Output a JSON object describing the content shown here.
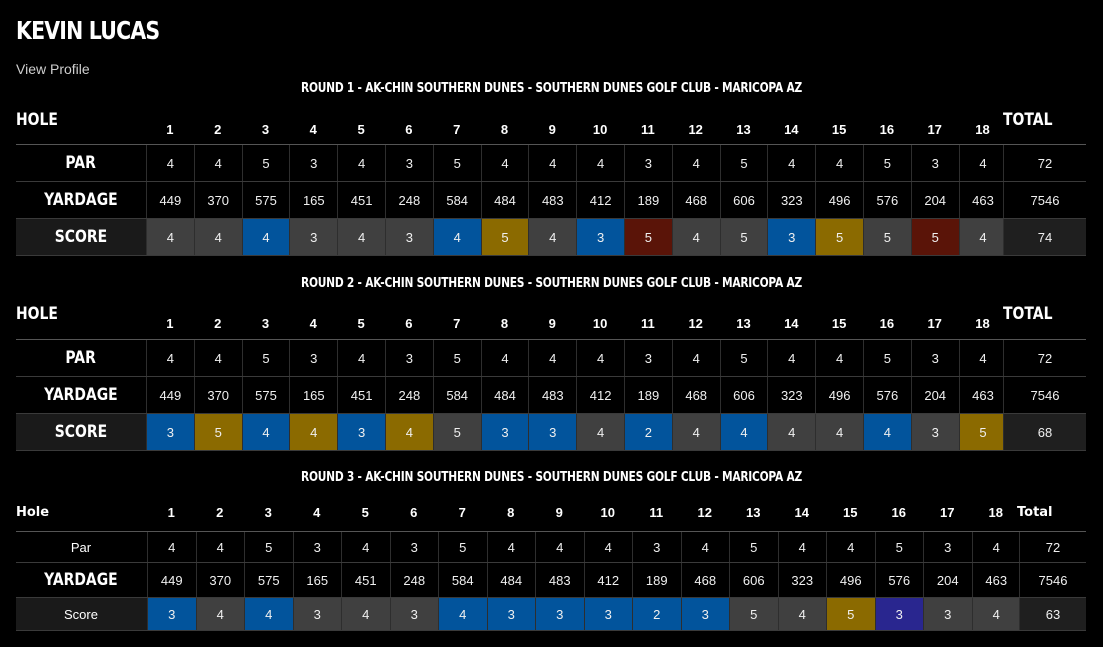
{
  "player": {
    "name": "KEVIN LUCAS",
    "view_profile": "View Profile"
  },
  "colors": {
    "par": "#404040",
    "birdie": "#02549c",
    "bogey": "#8b6a00",
    "double_bogey": "#5a1408",
    "eagle": "#29268f"
  },
  "rounds": [
    {
      "title": "ROUND 1 - AK-CHIN SOUTHERN DUNES - SOUTHERN DUNES GOLF CLUB - MARICOPA AZ",
      "hole_label": "HOLE",
      "total_label": "TOTAL",
      "par_label": "PAR",
      "yardage_label": "YARDAGE",
      "score_label": "SCORE",
      "holes": [
        "1",
        "2",
        "3",
        "4",
        "5",
        "6",
        "7",
        "8",
        "9",
        "10",
        "11",
        "12",
        "13",
        "14",
        "15",
        "16",
        "17",
        "18"
      ],
      "par": [
        "4",
        "4",
        "5",
        "3",
        "4",
        "3",
        "5",
        "4",
        "4",
        "4",
        "3",
        "4",
        "5",
        "4",
        "4",
        "5",
        "3",
        "4"
      ],
      "par_total": "72",
      "yardage": [
        "449",
        "370",
        "575",
        "165",
        "451",
        "248",
        "584",
        "484",
        "483",
        "412",
        "189",
        "468",
        "606",
        "323",
        "496",
        "576",
        "204",
        "463"
      ],
      "yardage_total": "7546",
      "score": [
        "4",
        "4",
        "4",
        "3",
        "4",
        "3",
        "4",
        "5",
        "4",
        "3",
        "5",
        "4",
        "5",
        "3",
        "5",
        "5",
        "5",
        "4"
      ],
      "score_total": "74"
    },
    {
      "title": "ROUND 2 - AK-CHIN SOUTHERN DUNES - SOUTHERN DUNES GOLF CLUB - MARICOPA AZ",
      "hole_label": "HOLE",
      "total_label": "TOTAL",
      "par_label": "PAR",
      "yardage_label": "YARDAGE",
      "score_label": "SCORE",
      "holes": [
        "1",
        "2",
        "3",
        "4",
        "5",
        "6",
        "7",
        "8",
        "9",
        "10",
        "11",
        "12",
        "13",
        "14",
        "15",
        "16",
        "17",
        "18"
      ],
      "par": [
        "4",
        "4",
        "5",
        "3",
        "4",
        "3",
        "5",
        "4",
        "4",
        "4",
        "3",
        "4",
        "5",
        "4",
        "4",
        "5",
        "3",
        "4"
      ],
      "par_total": "72",
      "yardage": [
        "449",
        "370",
        "575",
        "165",
        "451",
        "248",
        "584",
        "484",
        "483",
        "412",
        "189",
        "468",
        "606",
        "323",
        "496",
        "576",
        "204",
        "463"
      ],
      "yardage_total": "7546",
      "score": [
        "3",
        "5",
        "4",
        "4",
        "3",
        "4",
        "5",
        "3",
        "3",
        "4",
        "2",
        "4",
        "4",
        "4",
        "4",
        "4",
        "3",
        "5"
      ],
      "score_total": "68"
    },
    {
      "title": "ROUND 3 - AK-CHIN SOUTHERN DUNES - SOUTHERN DUNES GOLF CLUB - MARICOPA AZ",
      "hole_label": "Hole",
      "total_label": "Total",
      "par_label": "Par",
      "yardage_label": "YARDAGE",
      "score_label": "Score",
      "holes": [
        "1",
        "2",
        "3",
        "4",
        "5",
        "6",
        "7",
        "8",
        "9",
        "10",
        "11",
        "12",
        "13",
        "14",
        "15",
        "16",
        "17",
        "18"
      ],
      "par": [
        "4",
        "4",
        "5",
        "3",
        "4",
        "3",
        "5",
        "4",
        "4",
        "4",
        "3",
        "4",
        "5",
        "4",
        "4",
        "5",
        "3",
        "4"
      ],
      "par_total": "72",
      "yardage": [
        "449",
        "370",
        "575",
        "165",
        "451",
        "248",
        "584",
        "484",
        "483",
        "412",
        "189",
        "468",
        "606",
        "323",
        "496",
        "576",
        "204",
        "463"
      ],
      "yardage_total": "7546",
      "score": [
        "3",
        "4",
        "4",
        "3",
        "4",
        "3",
        "4",
        "3",
        "3",
        "3",
        "2",
        "3",
        "5",
        "4",
        "5",
        "3",
        "3",
        "4"
      ],
      "score_total": "63"
    }
  ]
}
